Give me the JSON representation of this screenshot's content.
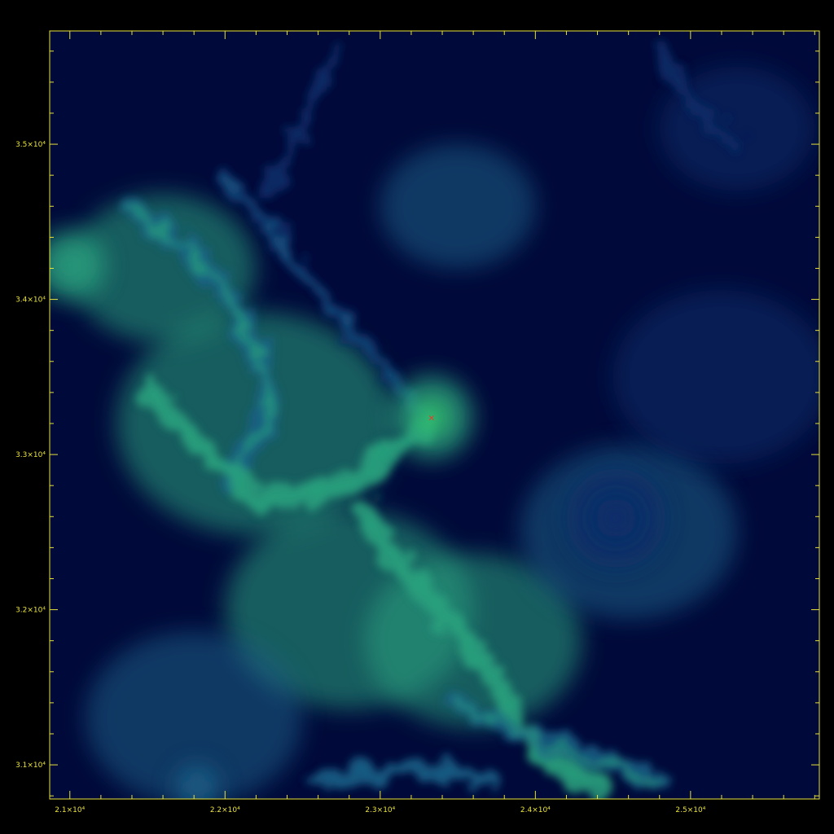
{
  "chart_data": {
    "type": "heatmap",
    "title": "",
    "xlabel": "",
    "ylabel": "",
    "xlim": [
      20870,
      25830
    ],
    "ylim": [
      30780,
      35730
    ],
    "grid": false,
    "colormap": [
      "#000a3a",
      "#0a2d6a",
      "#1a5f86",
      "#2aa17e",
      "#35c86a"
    ],
    "axis_color": "#e8e23a",
    "marker_color": "#ff3020",
    "x_ticks": [
      {
        "value": 21000,
        "label": "2.1×10⁴"
      },
      {
        "value": 22000,
        "label": "2.2×10⁴"
      },
      {
        "value": 23000,
        "label": "2.3×10⁴"
      },
      {
        "value": 24000,
        "label": "2.4×10⁴"
      },
      {
        "value": 25000,
        "label": "2.5×10⁴"
      }
    ],
    "y_ticks": [
      {
        "value": 31000,
        "label": "3.1×10⁴"
      },
      {
        "value": 32000,
        "label": "3.2×10⁴"
      },
      {
        "value": 33000,
        "label": "3.3×10⁴"
      },
      {
        "value": 34000,
        "label": "3.4×10⁴"
      },
      {
        "value": 35000,
        "label": "3.5×10⁴"
      }
    ],
    "minor_tick_step": 200,
    "density_peaks": [
      {
        "x": 23330,
        "y": 33240,
        "intensity": 1.0,
        "spread": 270
      },
      {
        "x": 21000,
        "y": 34220,
        "intensity": 0.85,
        "spread": 230
      },
      {
        "x": 24520,
        "y": 32590,
        "intensity": 0.35,
        "spread": 320
      },
      {
        "x": 21820,
        "y": 30860,
        "intensity": 0.5,
        "spread": 150
      }
    ],
    "filaments": [
      {
        "points": [
          [
            21400,
            34600
          ],
          [
            21900,
            34200
          ],
          [
            22200,
            33700
          ],
          [
            22300,
            33300
          ],
          [
            22000,
            32800
          ]
        ],
        "intensity": 0.55
      },
      {
        "points": [
          [
            21500,
            33400
          ],
          [
            22200,
            32700
          ],
          [
            22800,
            32800
          ],
          [
            23300,
            33200
          ]
        ],
        "intensity": 0.6
      },
      {
        "points": [
          [
            22900,
            32600
          ],
          [
            23300,
            32100
          ],
          [
            23700,
            31600
          ],
          [
            24000,
            31100
          ],
          [
            24400,
            30850
          ]
        ],
        "intensity": 0.6
      },
      {
        "points": [
          [
            23300,
            33240
          ],
          [
            22900,
            33700
          ],
          [
            22400,
            34300
          ],
          [
            22000,
            34800
          ]
        ],
        "intensity": 0.35
      },
      {
        "points": [
          [
            23500,
            31400
          ],
          [
            23900,
            31200
          ],
          [
            24500,
            31000
          ],
          [
            24800,
            30900
          ]
        ],
        "intensity": 0.45
      },
      {
        "points": [
          [
            22600,
            30900
          ],
          [
            23200,
            30980
          ],
          [
            23700,
            30900
          ]
        ],
        "intensity": 0.4
      },
      {
        "points": [
          [
            25300,
            35000
          ],
          [
            25000,
            35300
          ],
          [
            24800,
            35600
          ]
        ],
        "intensity": 0.2
      },
      {
        "points": [
          [
            22700,
            35600
          ],
          [
            22500,
            35100
          ],
          [
            22300,
            34700
          ]
        ],
        "intensity": 0.2
      }
    ],
    "markers": [
      {
        "x": 23330,
        "y": 33240,
        "symbol": "×"
      }
    ]
  }
}
